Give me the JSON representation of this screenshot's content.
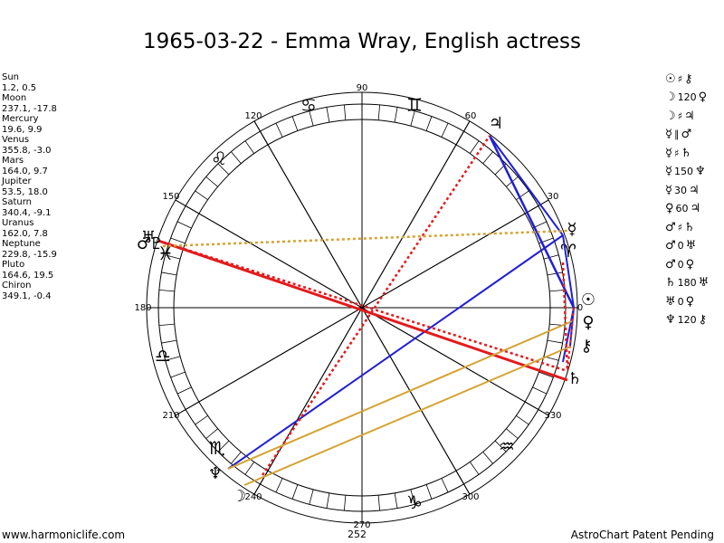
{
  "title": "1965-03-22 - Emma Wray, English actress",
  "planets": [
    {
      "name": "Sun",
      "coords": "1.2, 0.5"
    },
    {
      "name": "Moon",
      "coords": "237.1, -17.8"
    },
    {
      "name": "Mercury",
      "coords": "19.6, 9.9"
    },
    {
      "name": "Venus",
      "coords": "355.8, -3.0"
    },
    {
      "name": "Mars",
      "coords": "164.0, 9.7"
    },
    {
      "name": "Jupiter",
      "coords": "53.5, 18.0"
    },
    {
      "name": "Saturn",
      "coords": "340.4, -9.1"
    },
    {
      "name": "Uranus",
      "coords": "162.0, 7.8"
    },
    {
      "name": "Neptune",
      "coords": "229.8, -15.9"
    },
    {
      "name": "Pluto",
      "coords": "164.6, 19.5"
    },
    {
      "name": "Chiron",
      "coords": "349.1, -0.4"
    }
  ],
  "aspects": [
    {
      "p1": "☉",
      "asp": "♯",
      "p2": "⚷"
    },
    {
      "p1": "☽",
      "asp": "120",
      "p2": "♀"
    },
    {
      "p1": "☽",
      "asp": "♯",
      "p2": "♃"
    },
    {
      "p1": "☿",
      "asp": "∥",
      "p2": "♂"
    },
    {
      "p1": "☿",
      "asp": "♯",
      "p2": "♄"
    },
    {
      "p1": "☿",
      "asp": "150",
      "p2": "♆"
    },
    {
      "p1": "☿",
      "asp": "30",
      "p2": "♃"
    },
    {
      "p1": "♀",
      "asp": "60",
      "p2": "♃"
    },
    {
      "p1": "♂",
      "asp": "♯",
      "p2": "♄"
    },
    {
      "p1": "♂",
      "asp": "0",
      "p2": "♅"
    },
    {
      "p1": "♂",
      "asp": "0",
      "p2": "♀"
    },
    {
      "p1": "♄",
      "asp": "180",
      "p2": "♅"
    },
    {
      "p1": "♅",
      "asp": "0",
      "p2": "♀"
    },
    {
      "p1": "♆",
      "asp": "120",
      "p2": "⚷"
    }
  ],
  "degree_labels": {
    "d90": "90",
    "d60": "60",
    "d30": "30",
    "d0": "0",
    "d330": "330",
    "d300": "300",
    "d270": "270",
    "d240": "240",
    "d210": "210",
    "d180": "180",
    "d150": "150",
    "d120": "120"
  },
  "zodiac": {
    "gemini": "♊",
    "cancer": "♋",
    "leo": "♌",
    "aries": "♈",
    "libra": "♎",
    "scorpio": "♏",
    "capricorn": "♑",
    "aquarius": "♒",
    "pisces": "♓"
  },
  "planet_glyphs": {
    "sun": "☉",
    "moon": "☽",
    "mercury": "☿",
    "venus": "♀",
    "mars": "♂",
    "jupiter": "♃",
    "saturn": "♄",
    "uranus": "♅",
    "neptune": "♆",
    "pluto": "♇",
    "chiron": "⚷"
  },
  "colors": {
    "red": "#e41a1c",
    "blue": "#1f1fd6",
    "gold": "#d4a332"
  },
  "footer": {
    "site": "www.harmoniclife.com",
    "number": "252",
    "pending": "AstroChart Patent Pending"
  }
}
